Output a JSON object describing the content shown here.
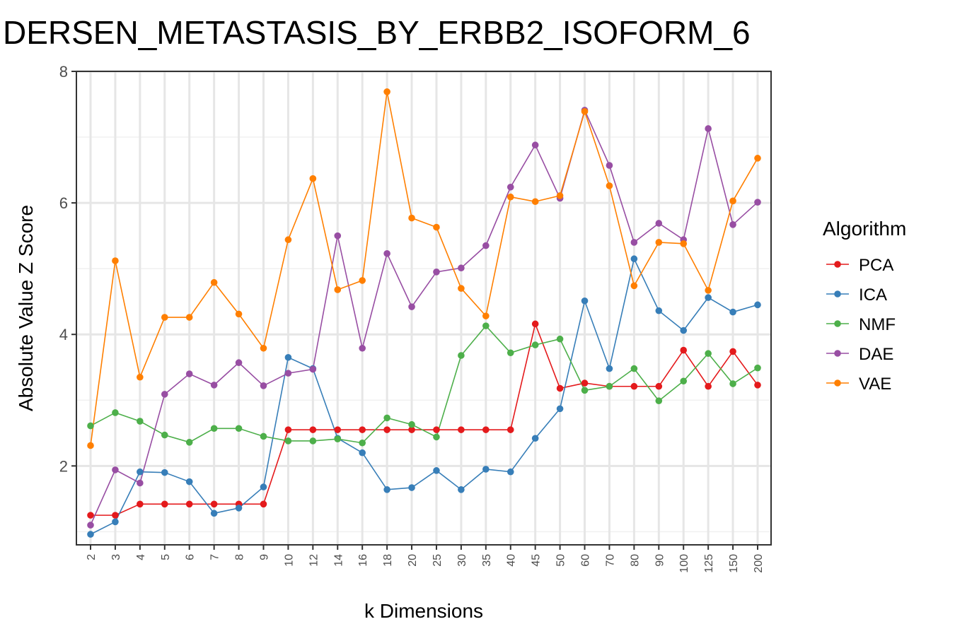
{
  "chart_data": {
    "type": "line",
    "title": "DERSEN_METASTASIS_BY_ERBB2_ISOFORM_6",
    "xlabel": "k Dimensions",
    "ylabel": "Absolute Value Z Score",
    "categories": [
      "2",
      "3",
      "4",
      "5",
      "6",
      "7",
      "8",
      "9",
      "10",
      "12",
      "14",
      "16",
      "18",
      "20",
      "25",
      "30",
      "35",
      "40",
      "45",
      "50",
      "60",
      "70",
      "80",
      "90",
      "100",
      "125",
      "150",
      "200"
    ],
    "ylim": [
      0.8,
      8.0
    ],
    "yticks": [
      2,
      4,
      6,
      8
    ],
    "grid": true,
    "legend": {
      "title": "Algorithm",
      "placement": "right"
    },
    "series": [
      {
        "name": "PCA",
        "color": "#E41A1C",
        "values": [
          1.25,
          1.25,
          1.42,
          1.42,
          1.42,
          1.42,
          1.42,
          1.42,
          2.55,
          2.55,
          2.55,
          2.55,
          2.55,
          2.55,
          2.55,
          2.55,
          2.55,
          2.55,
          4.16,
          3.18,
          3.26,
          3.21,
          3.21,
          3.21,
          3.76,
          3.21,
          3.74,
          3.23
        ]
      },
      {
        "name": "ICA",
        "color": "#377EB8",
        "values": [
          0.96,
          1.15,
          1.91,
          1.9,
          1.76,
          1.28,
          1.36,
          1.68,
          3.65,
          3.48,
          2.42,
          2.2,
          1.64,
          1.67,
          1.93,
          1.64,
          1.95,
          1.91,
          2.42,
          2.87,
          4.51,
          3.48,
          5.15,
          4.36,
          4.06,
          4.56,
          4.34,
          4.45
        ]
      },
      {
        "name": "NMF",
        "color": "#4DAF4A",
        "values": [
          2.61,
          2.81,
          2.68,
          2.47,
          2.36,
          2.57,
          2.57,
          2.45,
          2.38,
          2.38,
          2.41,
          2.35,
          2.73,
          2.63,
          2.44,
          3.68,
          4.13,
          3.72,
          3.84,
          3.93,
          3.15,
          3.21,
          3.48,
          2.99,
          3.29,
          3.71,
          3.25,
          3.49
        ]
      },
      {
        "name": "DAE",
        "color": "#984EA3",
        "values": [
          1.1,
          1.94,
          1.74,
          3.09,
          3.4,
          3.23,
          3.57,
          3.22,
          3.41,
          3.47,
          5.5,
          3.79,
          5.23,
          4.42,
          4.95,
          5.01,
          5.35,
          6.24,
          6.88,
          6.07,
          7.41,
          6.57,
          5.4,
          5.69,
          5.44,
          7.13,
          5.67,
          6.01
        ]
      },
      {
        "name": "VAE",
        "color": "#FF7F00",
        "values": [
          2.31,
          5.12,
          3.35,
          4.26,
          4.26,
          4.79,
          4.31,
          3.79,
          5.44,
          6.37,
          4.68,
          4.82,
          7.69,
          5.77,
          5.63,
          4.7,
          4.28,
          6.09,
          6.02,
          6.11,
          7.39,
          6.26,
          4.74,
          5.4,
          5.38,
          4.67,
          6.03,
          6.68
        ]
      }
    ]
  }
}
